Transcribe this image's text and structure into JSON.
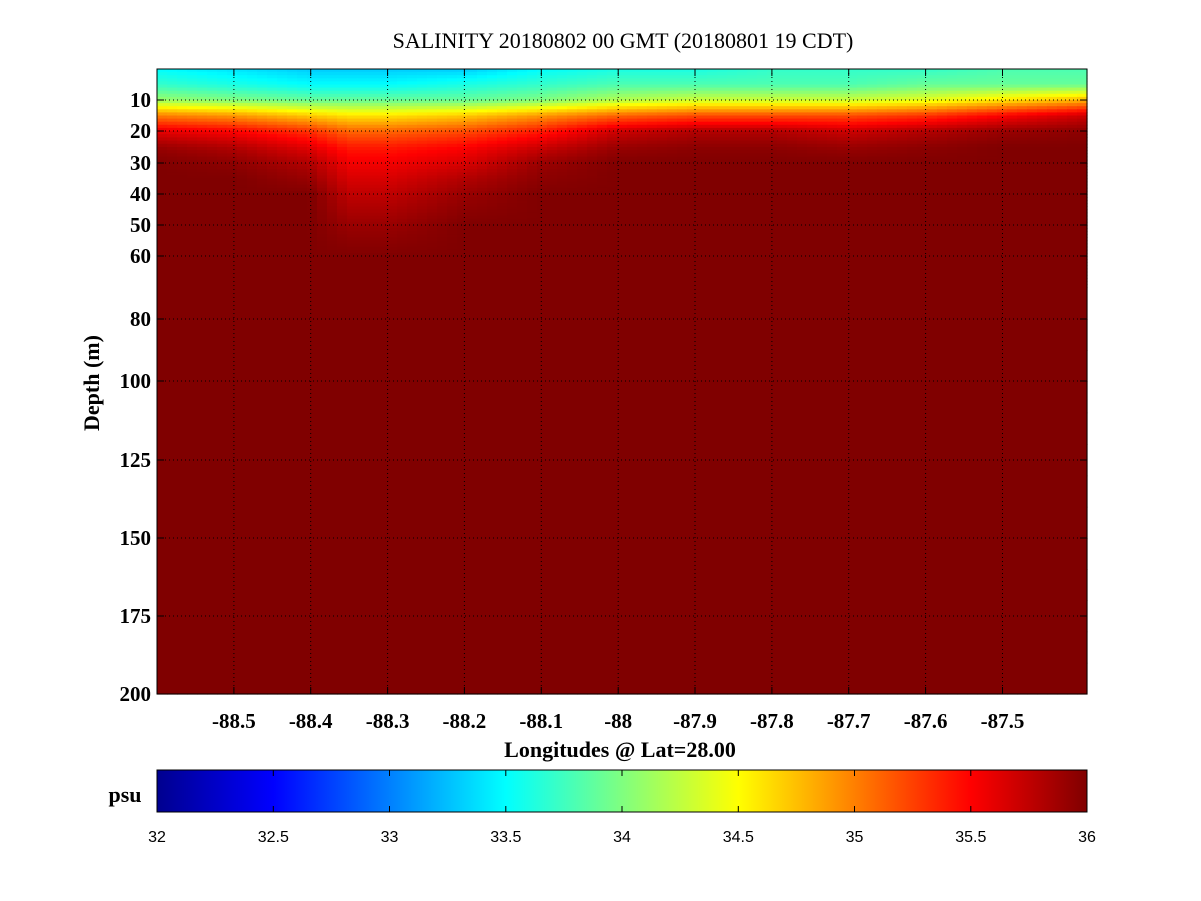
{
  "chart_data": {
    "type": "heatmap",
    "title": "SALINITY 20180802 00 GMT (20180801 19 CDT)",
    "xlabel": "Longitudes @ Lat=28.00",
    "ylabel": "Depth (m)",
    "xlim": [
      -88.6,
      -87.39
    ],
    "ylim": [
      200,
      0
    ],
    "grid": true,
    "x_ticks": [
      -88.5,
      -88.4,
      -88.3,
      -88.2,
      -88.1,
      -88,
      -87.9,
      -87.8,
      -87.7,
      -87.6,
      -87.5
    ],
    "x_tick_labels": [
      "-88.5",
      "-88.4",
      "-88.3",
      "-88.2",
      "-88.1",
      "-88",
      "-87.9",
      "-87.8",
      "-87.7",
      "-87.6",
      "-87.5"
    ],
    "y_ticks": [
      10,
      20,
      30,
      40,
      50,
      60,
      80,
      100,
      125,
      150,
      175,
      200
    ],
    "y_tick_labels": [
      "10",
      "20",
      "30",
      "40",
      "50",
      "60",
      "80",
      "100",
      "125",
      "150",
      "175",
      "200"
    ],
    "field": {
      "longitudes": [
        -88.6,
        -88.5,
        -88.4,
        -88.35,
        -88.3,
        -88.2,
        -88.1,
        -88.0,
        -87.9,
        -87.8,
        -87.7,
        -87.6,
        -87.5,
        -87.39
      ],
      "depths": [
        0,
        5,
        10,
        15,
        20,
        25,
        30,
        35,
        40,
        50,
        60,
        200
      ],
      "salinity": [
        [
          33.5,
          33.4,
          33.3,
          33.3,
          33.3,
          33.3,
          33.5,
          33.6,
          33.6,
          33.7,
          33.7,
          33.7,
          33.8,
          33.8
        ],
        [
          33.7,
          33.6,
          33.5,
          33.5,
          33.5,
          33.6,
          33.7,
          33.8,
          33.8,
          33.8,
          33.8,
          33.9,
          33.9,
          33.9
        ],
        [
          34.1,
          34.0,
          33.9,
          33.9,
          33.9,
          33.9,
          34.0,
          34.2,
          34.3,
          34.3,
          34.3,
          34.4,
          34.6,
          34.8
        ],
        [
          35.0,
          34.9,
          34.7,
          34.6,
          34.6,
          34.7,
          34.9,
          35.1,
          35.2,
          35.2,
          35.2,
          35.3,
          35.5,
          35.7
        ],
        [
          35.6,
          35.5,
          35.3,
          35.1,
          35.1,
          35.2,
          35.4,
          35.7,
          35.8,
          35.8,
          35.7,
          35.8,
          35.9,
          35.95
        ],
        [
          35.9,
          35.8,
          35.6,
          35.4,
          35.4,
          35.5,
          35.7,
          35.9,
          35.95,
          35.95,
          35.9,
          35.95,
          36,
          36
        ],
        [
          36,
          35.95,
          35.8,
          35.55,
          35.55,
          35.65,
          35.9,
          36,
          36,
          36,
          36,
          36,
          36,
          36
        ],
        [
          36,
          36,
          35.9,
          35.65,
          35.65,
          35.8,
          35.95,
          36,
          36,
          36,
          36,
          36,
          36,
          36
        ],
        [
          36,
          36,
          36,
          35.75,
          35.75,
          35.9,
          36,
          36,
          36,
          36,
          36,
          36,
          36,
          36
        ],
        [
          36,
          36,
          36,
          35.9,
          35.9,
          36,
          36,
          36,
          36,
          36,
          36,
          36,
          36,
          36
        ],
        [
          36,
          36,
          36,
          36,
          36,
          36,
          36,
          36,
          36,
          36,
          36,
          36,
          36,
          36
        ],
        [
          36,
          36,
          36,
          36,
          36,
          36,
          36,
          36,
          36,
          36,
          36,
          36,
          36,
          36
        ]
      ]
    },
    "colorbar": {
      "label": "psu",
      "min": 32,
      "max": 36,
      "ticks": [
        "32",
        "32.5",
        "33",
        "33.5",
        "34",
        "34.5",
        "35",
        "35.5",
        "36"
      ],
      "colormap": "jet",
      "stops": [
        "#00008f",
        "#0000ff",
        "#00ffff",
        "#ffff00",
        "#ff0000",
        "#800000"
      ]
    }
  }
}
